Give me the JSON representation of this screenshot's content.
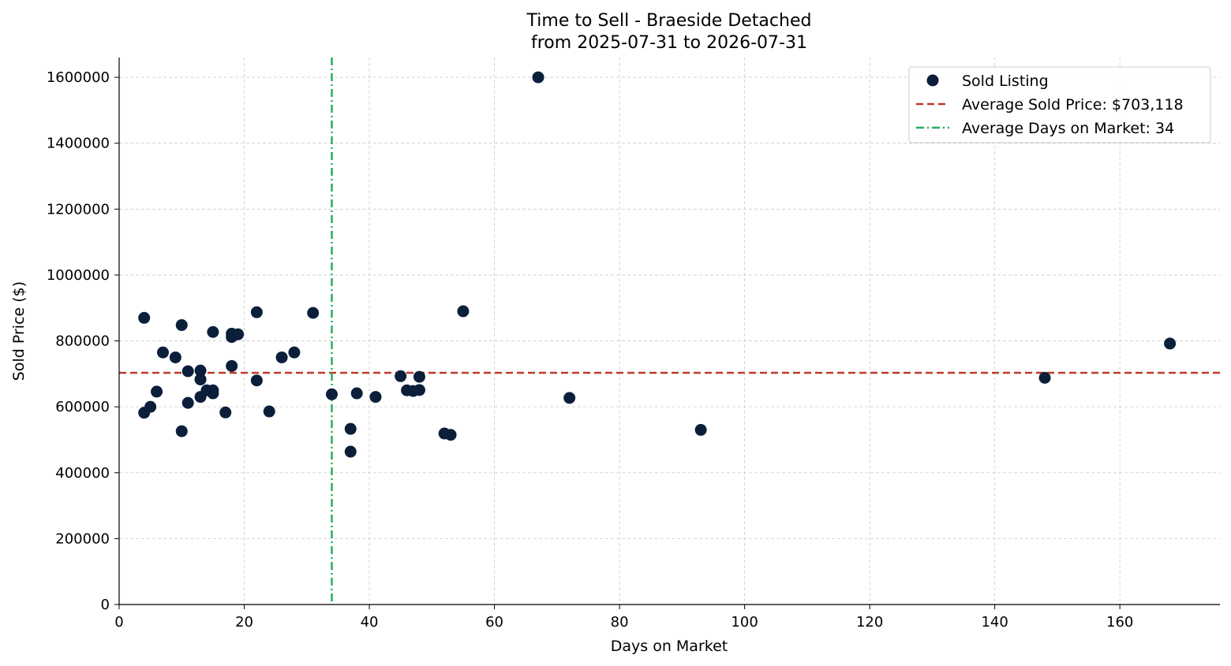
{
  "chart_data": {
    "type": "scatter",
    "title_line1": "Time to Sell - Braeside Detached",
    "title_line2": "from 2025-07-31 to 2026-07-31",
    "xlabel": "Days on Market",
    "ylabel": "Sold Price ($)",
    "xlim": [
      0,
      176
    ],
    "ylim": [
      0,
      1660000
    ],
    "xticks": [
      0,
      20,
      40,
      60,
      80,
      100,
      120,
      140,
      160
    ],
    "yticks": [
      0,
      200000,
      400000,
      600000,
      800000,
      1000000,
      1200000,
      1400000,
      1600000
    ],
    "grid": true,
    "legend_position": "top-right",
    "colors": {
      "points": "#0b1f3a",
      "avg_price_line": "#c0392b",
      "avg_days_line": "#27ae60"
    },
    "series": [
      {
        "name": "Sold Listing",
        "points": [
          {
            "x": 4,
            "y": 870000
          },
          {
            "x": 4,
            "y": 582000
          },
          {
            "x": 5,
            "y": 600000
          },
          {
            "x": 6,
            "y": 646000
          },
          {
            "x": 7,
            "y": 765000
          },
          {
            "x": 9,
            "y": 750000
          },
          {
            "x": 10,
            "y": 848000
          },
          {
            "x": 10,
            "y": 526000
          },
          {
            "x": 11,
            "y": 708000
          },
          {
            "x": 11,
            "y": 612000
          },
          {
            "x": 13,
            "y": 710000
          },
          {
            "x": 13,
            "y": 683000
          },
          {
            "x": 13,
            "y": 630000
          },
          {
            "x": 14,
            "y": 650000
          },
          {
            "x": 15,
            "y": 827000
          },
          {
            "x": 15,
            "y": 650000
          },
          {
            "x": 15,
            "y": 641000
          },
          {
            "x": 17,
            "y": 583000
          },
          {
            "x": 18,
            "y": 822000
          },
          {
            "x": 18,
            "y": 812000
          },
          {
            "x": 18,
            "y": 724000
          },
          {
            "x": 19,
            "y": 820000
          },
          {
            "x": 22,
            "y": 887000
          },
          {
            "x": 22,
            "y": 680000
          },
          {
            "x": 24,
            "y": 586000
          },
          {
            "x": 26,
            "y": 750000
          },
          {
            "x": 28,
            "y": 765000
          },
          {
            "x": 31,
            "y": 885000
          },
          {
            "x": 34,
            "y": 638000
          },
          {
            "x": 37,
            "y": 533000
          },
          {
            "x": 37,
            "y": 464000
          },
          {
            "x": 38,
            "y": 641000
          },
          {
            "x": 41,
            "y": 630000
          },
          {
            "x": 45,
            "y": 693000
          },
          {
            "x": 46,
            "y": 650000
          },
          {
            "x": 47,
            "y": 648000
          },
          {
            "x": 48,
            "y": 691000
          },
          {
            "x": 48,
            "y": 651000
          },
          {
            "x": 52,
            "y": 519000
          },
          {
            "x": 53,
            "y": 515000
          },
          {
            "x": 55,
            "y": 890000
          },
          {
            "x": 67,
            "y": 1600000
          },
          {
            "x": 72,
            "y": 627000
          },
          {
            "x": 93,
            "y": 530000
          },
          {
            "x": 148,
            "y": 688000
          },
          {
            "x": 168,
            "y": 792000
          }
        ]
      }
    ],
    "reference_lines": {
      "avg_price": {
        "label": "Average Sold Price: $703,118",
        "y": 703118
      },
      "avg_days": {
        "label": "Average Days on Market: 34",
        "x": 34
      }
    }
  }
}
